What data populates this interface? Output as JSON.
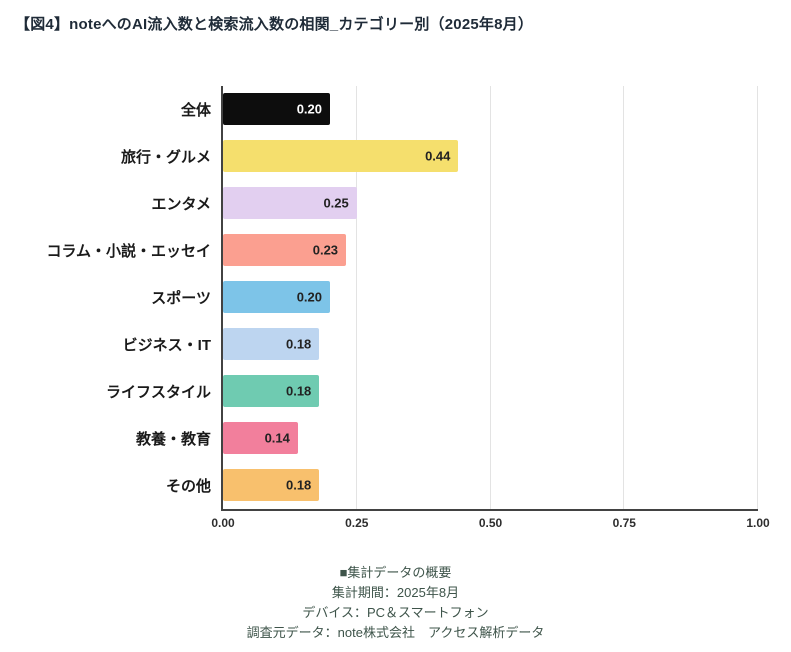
{
  "title": "【図4】noteへのAI流入数と検索流入数の相関_カテゴリー別（2025年8月）",
  "chart_data": {
    "type": "bar",
    "orientation": "horizontal",
    "title": "【図4】noteへのAI流入数と検索流入数の相関_カテゴリー別（2025年8月）",
    "categories": [
      "全体",
      "旅行・グルメ",
      "エンタメ",
      "コラム・小説・エッセイ",
      "スポーツ",
      "ビジネス・IT",
      "ライフスタイル",
      "教養・教育",
      "その他"
    ],
    "values": [
      0.2,
      0.44,
      0.25,
      0.23,
      0.2,
      0.18,
      0.18,
      0.14,
      0.18
    ],
    "value_labels": [
      "0.20",
      "0.44",
      "0.25",
      "0.23",
      "0.20",
      "0.18",
      "0.18",
      "0.14",
      "0.18"
    ],
    "bar_colors": [
      "#0d0d0d",
      "#f5df6d",
      "#e2cff0",
      "#fb9f90",
      "#7dc4e8",
      "#bdd5f0",
      "#6fcbb1",
      "#f27f9c",
      "#f8c06d"
    ],
    "value_text_colors": [
      "#ffffff",
      "#222222",
      "#222222",
      "#222222",
      "#222222",
      "#222222",
      "#222222",
      "#222222",
      "#222222"
    ],
    "xlabel": "",
    "ylabel": "",
    "xlim": [
      0,
      1
    ],
    "x_ticks": [
      "0.00",
      "0.25",
      "0.50",
      "0.75",
      "1.00"
    ],
    "grid": true,
    "legend": false
  },
  "footer": {
    "heading": "■集計データの概要",
    "period": "集計期間：2025年8月",
    "device": "デバイス：PC＆スマートフォン",
    "source": "調査元データ：note株式会社　アクセス解析データ"
  },
  "colors": {
    "axis": "#424242",
    "gridline": "#e3e3e3",
    "title_text": "#1f2b38",
    "footer_text": "#3e544a"
  }
}
